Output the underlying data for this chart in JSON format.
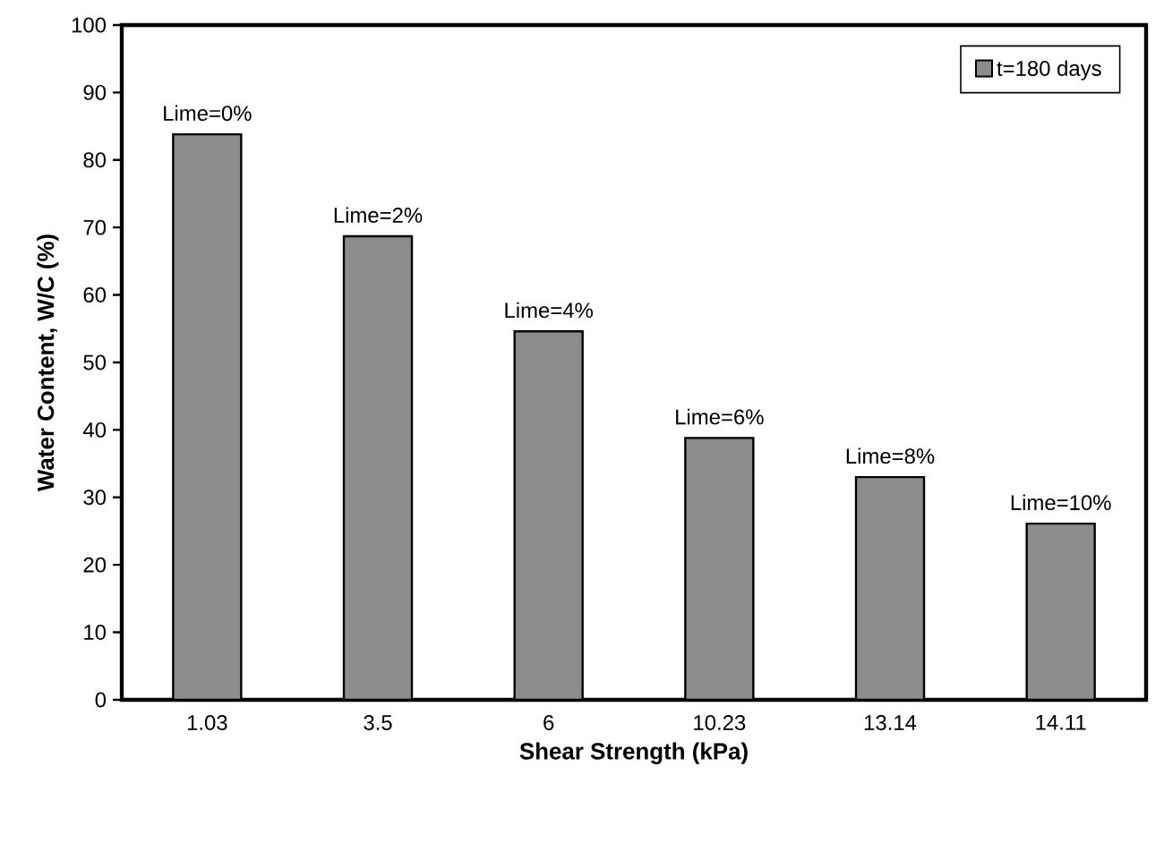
{
  "chart_data": {
    "type": "bar",
    "xlabel": "Shear Strength (kPa)",
    "ylabel": "Water Content, W/C (%)",
    "categories": [
      "1.03",
      "3.5",
      "6",
      "10.23",
      "13.14",
      "14.11"
    ],
    "series": [
      {
        "name": "t=180 days",
        "color": "#8c8c8c",
        "values": [
          83.8,
          68.7,
          54.6,
          38.8,
          33.0,
          26.1
        ]
      }
    ],
    "ylim": [
      0,
      100
    ],
    "yticks": [
      0,
      10,
      20,
      30,
      40,
      50,
      60,
      70,
      80,
      90,
      100
    ],
    "annotations": [
      {
        "text": "Lime=0%",
        "x": "1.03",
        "y": 83.8
      },
      {
        "text": "Lime=2%",
        "x": "3.5",
        "y": 68.7
      },
      {
        "text": "Lime=4%",
        "x": "6",
        "y": 54.6
      },
      {
        "text": "Lime=6%",
        "x": "10.23",
        "y": 38.8
      },
      {
        "text": "Lime=8%",
        "x": "13.14",
        "y": 33.0
      },
      {
        "text": "Lime=10%",
        "x": "14.11",
        "y": 26.1
      }
    ],
    "legend": "top right",
    "grid": false
  }
}
